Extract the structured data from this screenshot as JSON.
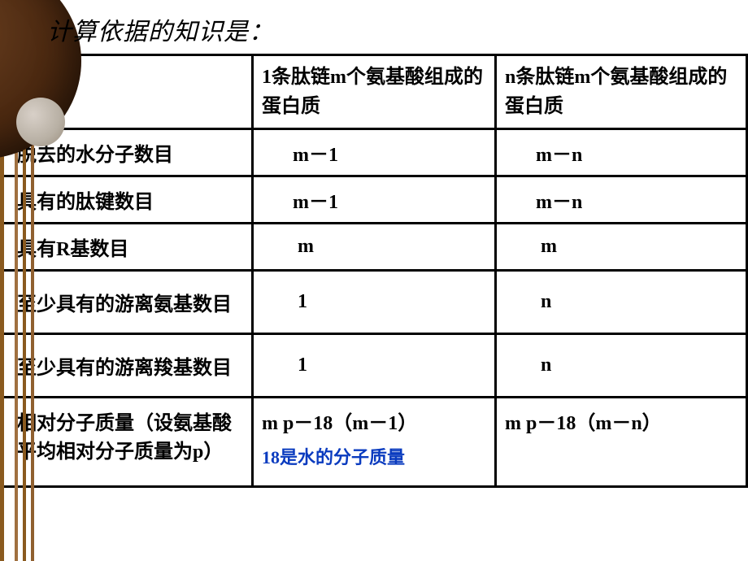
{
  "heading": "计算依据的知识是：",
  "table": {
    "header": {
      "c0": "",
      "c1": "1条肽链m个氨基酸组成的蛋白质",
      "c2": "n条肽链m个氨基酸组成的蛋白质"
    },
    "rows": [
      {
        "label": "脱去的水分子数目",
        "col1": "m－1",
        "col2": "m－n"
      },
      {
        "label": "具有的肽键数目",
        "col1": "m－1",
        "col2": "m－n"
      },
      {
        "label": "具有R基数目",
        "col1": "m",
        "col2": "m"
      },
      {
        "label": "至少具有的游离氨基数目",
        "col1": "1",
        "col2": "n"
      },
      {
        "label": "至少具有的游离羧基数目",
        "col1": "1",
        "col2": "n"
      },
      {
        "label": "相对分子质量（设氨基酸平均相对分子质量为p）",
        "col1": "m p－18（m－1）",
        "col2": "m p－18（m－n）"
      }
    ],
    "note": "18是水的分子质量"
  },
  "style": {
    "background": "#ffffff",
    "heading_color": "#000000",
    "heading_fontsize": 30,
    "cell_fontsize": 24,
    "border_color": "#000000",
    "note_color": "#0a3bbf",
    "deco_lines": [
      "#8a5a1f",
      "#a07040",
      "#8a5a1f",
      "#906030"
    ],
    "sphere_big_gradient": [
      "#6b4020",
      "#4a2810",
      "#2a1608"
    ],
    "sphere_small_gradient": [
      "#d8d0c8",
      "#b8b0a4",
      "#988c7c"
    ]
  }
}
